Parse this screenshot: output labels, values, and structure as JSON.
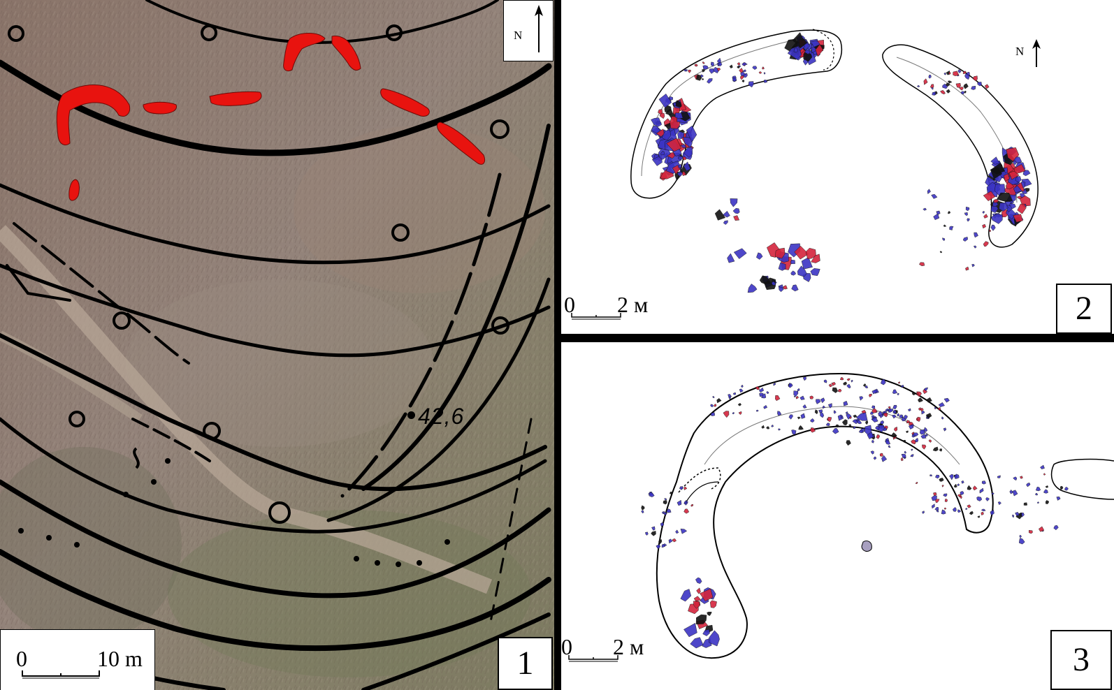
{
  "panels": [
    {
      "number": "1",
      "north_label": "N",
      "scale": {
        "start": "0",
        "end": "10 m"
      },
      "spot_height": "42,6",
      "background": "aerial photo with topographic contour lines",
      "highlight_color": "#e8130f"
    },
    {
      "number": "2",
      "north_label": "N",
      "scale": {
        "start": "0",
        "end": "2 м"
      },
      "find_color_blue": "#3b34c4",
      "find_color_red": "#d4243c"
    },
    {
      "number": "3",
      "scale": {
        "start": "0",
        "end": "2 м"
      },
      "find_color_blue": "#3b34c4",
      "find_color_red": "#d4243c"
    }
  ]
}
